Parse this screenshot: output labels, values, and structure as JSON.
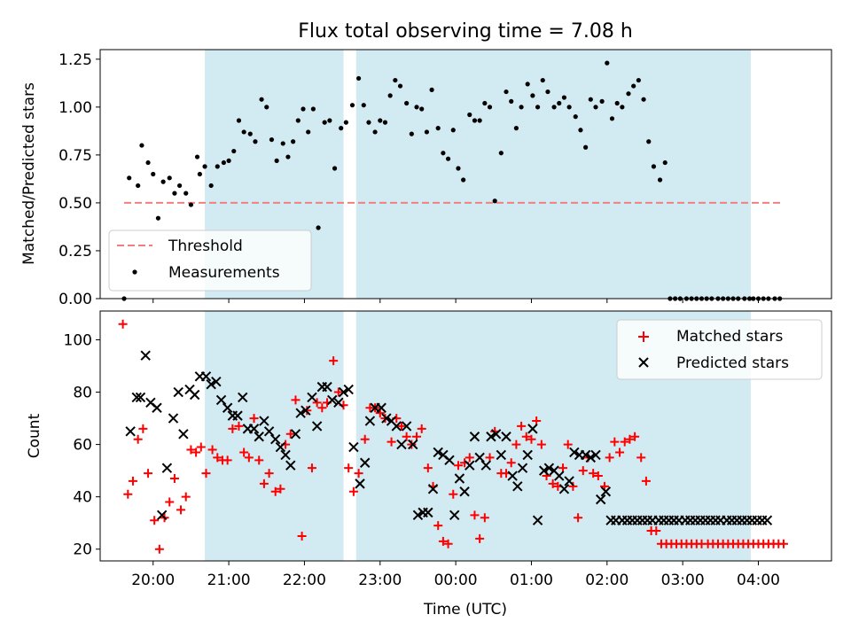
{
  "chart_data": [
    {
      "type": "scatter",
      "title": "Flux total observing time = 7.08 h",
      "xlabel": "",
      "ylabel": "Matched/Predicted stars",
      "xlim": [
        "19:18",
        "04:58"
      ],
      "ylim": [
        0,
        1.3
      ],
      "yticks": [
        0,
        0.25,
        0.5,
        0.75,
        1.0,
        1.25
      ],
      "ytick_labels": [
        "0.00",
        "0.25",
        "0.50",
        "0.75",
        "1.00",
        "1.25"
      ],
      "xticks": [
        "20:00",
        "21:00",
        "22:00",
        "23:00",
        "00:00",
        "01:00",
        "02:00",
        "03:00",
        "04:00"
      ],
      "show_x_tick_labels": false,
      "grid": false,
      "legend": {
        "placement": "lower-left",
        "entries": [
          "Threshold",
          "Measurements"
        ]
      },
      "shaded_intervals": [
        [
          "20:41",
          "22:31"
        ],
        [
          "22:41",
          "03:54"
        ]
      ],
      "shade_color": "#add8e6",
      "threshold": {
        "name": "Threshold",
        "value": 0.5,
        "x_range": [
          "19:37",
          "04:20"
        ],
        "color": "#f08080",
        "style": "dashed"
      },
      "series": [
        {
          "name": "Measurements",
          "color": "#000000",
          "marker": "dot",
          "x": [
            "19:37",
            "19:41",
            "19:48",
            "19:51",
            "19:56",
            "20:00",
            "20:04",
            "20:08",
            "20:13",
            "20:17",
            "20:21",
            "20:26",
            "20:30",
            "20:35",
            "20:37",
            "20:41",
            "20:46",
            "20:51",
            "20:56",
            "21:00",
            "21:04",
            "21:08",
            "21:12",
            "21:17",
            "21:21",
            "21:26",
            "21:30",
            "21:34",
            "21:38",
            "21:43",
            "21:47",
            "21:51",
            "21:55",
            "21:59",
            "22:03",
            "22:07",
            "22:11",
            "22:16",
            "22:20",
            "22:24",
            "22:29",
            "22:33",
            "22:38",
            "22:43",
            "22:47",
            "22:51",
            "22:56",
            "23:00",
            "23:04",
            "23:08",
            "23:12",
            "23:16",
            "23:21",
            "23:25",
            "23:29",
            "23:33",
            "23:37",
            "23:41",
            "23:46",
            "23:50",
            "23:54",
            "23:58",
            "00:02",
            "00:06",
            "00:11",
            "00:15",
            "00:19",
            "00:23",
            "00:27",
            "00:31",
            "00:36",
            "00:40",
            "00:44",
            "00:48",
            "00:52",
            "00:57",
            "01:01",
            "01:05",
            "01:09",
            "01:13",
            "01:18",
            "01:22",
            "01:26",
            "01:30",
            "01:35",
            "01:39",
            "01:43",
            "01:47",
            "01:51",
            "01:56",
            "02:00",
            "02:04",
            "02:08",
            "02:12",
            "02:17",
            "02:21",
            "02:25",
            "02:29",
            "02:33",
            "02:37",
            "02:42",
            "02:46",
            "02:50",
            "02:54",
            "02:58",
            "03:03",
            "03:07",
            "03:11",
            "03:15",
            "03:19",
            "03:23",
            "03:28",
            "03:32",
            "03:36",
            "03:40",
            "03:44",
            "03:49",
            "03:53",
            "03:56",
            "04:00",
            "04:04",
            "04:08",
            "04:13",
            "04:17"
          ],
          "y": [
            0.0,
            0.63,
            0.59,
            0.8,
            0.71,
            0.65,
            0.42,
            0.61,
            0.63,
            0.55,
            0.59,
            0.55,
            0.49,
            0.74,
            0.65,
            0.69,
            0.59,
            0.69,
            0.71,
            0.72,
            0.77,
            0.93,
            0.87,
            0.86,
            0.82,
            1.04,
            1.0,
            0.83,
            0.72,
            0.81,
            0.74,
            0.82,
            0.93,
            0.99,
            0.87,
            0.99,
            0.37,
            0.92,
            0.93,
            0.68,
            0.89,
            0.92,
            1.01,
            1.15,
            1.01,
            0.92,
            0.87,
            0.93,
            0.92,
            1.06,
            1.14,
            1.11,
            1.02,
            0.86,
            1.0,
            0.99,
            0.87,
            1.09,
            0.89,
            0.76,
            0.73,
            0.88,
            0.68,
            0.62,
            0.96,
            0.93,
            0.93,
            1.02,
            1.0,
            0.51,
            0.76,
            1.08,
            1.03,
            0.89,
            1.0,
            1.12,
            1.06,
            1.0,
            1.14,
            1.08,
            1.0,
            1.02,
            1.05,
            1.0,
            0.95,
            0.88,
            0.79,
            1.04,
            1.0,
            1.03,
            1.23,
            0.94,
            1.02,
            1.0,
            1.07,
            1.11,
            1.14,
            1.04,
            0.82,
            0.69,
            0.62,
            0.71,
            0.0,
            0.0,
            0.0,
            0.0,
            0.0,
            0.0,
            0.0,
            0.0,
            0.0,
            0.0,
            0.0,
            0.0,
            0.0,
            0.0,
            0.0,
            0.0,
            0.0,
            0.0,
            0.0,
            0.0,
            0.0,
            0.0
          ]
        }
      ]
    },
    {
      "type": "scatter",
      "title": "",
      "xlabel": "Time (UTC)",
      "ylabel": "Count",
      "xlim": [
        "19:18",
        "04:58"
      ],
      "ylim": [
        15.5,
        111
      ],
      "yticks": [
        20,
        40,
        60,
        80,
        100
      ],
      "ytick_labels": [
        "20",
        "40",
        "60",
        "80",
        "100"
      ],
      "xticks": [
        "20:00",
        "21:00",
        "22:00",
        "23:00",
        "00:00",
        "01:00",
        "02:00",
        "03:00",
        "04:00"
      ],
      "show_x_tick_labels": true,
      "grid": false,
      "legend": {
        "placement": "top-right",
        "entries": [
          "Matched stars",
          "Predicted stars"
        ]
      },
      "shaded_intervals": [
        [
          "20:41",
          "22:31"
        ],
        [
          "22:41",
          "03:54"
        ]
      ],
      "shade_color": "#add8e6",
      "series": [
        {
          "name": "Matched stars",
          "color": "#ff0000",
          "marker": "plus",
          "x": [
            "19:36",
            "19:40",
            "19:44",
            "19:48",
            "19:52",
            "19:56",
            "20:01",
            "20:05",
            "20:09",
            "20:13",
            "20:17",
            "20:22",
            "20:26",
            "20:30",
            "20:34",
            "20:38",
            "20:42",
            "20:47",
            "20:51",
            "20:55",
            "20:59",
            "21:03",
            "21:08",
            "21:12",
            "21:16",
            "21:20",
            "21:24",
            "21:28",
            "21:32",
            "21:37",
            "21:41",
            "21:45",
            "21:49",
            "21:53",
            "21:58",
            "22:02",
            "22:06",
            "22:10",
            "22:14",
            "22:18",
            "22:23",
            "22:27",
            "22:31",
            "22:35",
            "22:39",
            "22:43",
            "22:48",
            "22:52",
            "22:56",
            "23:00",
            "23:04",
            "23:09",
            "23:13",
            "23:17",
            "23:21",
            "23:25",
            "23:29",
            "23:33",
            "23:38",
            "23:42",
            "23:46",
            "23:50",
            "23:54",
            "23:58",
            "00:02",
            "00:07",
            "00:11",
            "00:15",
            "00:19",
            "00:23",
            "00:27",
            "00:31",
            "00:36",
            "00:40",
            "00:44",
            "00:48",
            "00:52",
            "00:56",
            "01:00",
            "01:04",
            "01:08",
            "01:12",
            "01:17",
            "01:21",
            "01:25",
            "01:29",
            "01:33",
            "01:37",
            "01:41",
            "01:45",
            "01:49",
            "01:53",
            "01:58",
            "02:02",
            "02:06",
            "02:10",
            "02:14",
            "02:18",
            "02:22",
            "02:27",
            "02:31",
            "02:35",
            "02:39",
            "02:43",
            "02:47",
            "02:51",
            "02:55",
            "02:59",
            "03:03",
            "03:07",
            "03:11",
            "03:15",
            "03:20",
            "03:24",
            "03:28",
            "03:32",
            "03:36",
            "03:40",
            "03:44",
            "03:48",
            "03:52",
            "03:56",
            "04:00",
            "04:04",
            "04:08",
            "04:12",
            "04:16",
            "04:20"
          ],
          "y": [
            106,
            41,
            46,
            62,
            66,
            49,
            31,
            20,
            32,
            38,
            47,
            35,
            40,
            58,
            57,
            59,
            49,
            58,
            55,
            54,
            54,
            66,
            67,
            57,
            55,
            70,
            54,
            45,
            49,
            42,
            43,
            60,
            64,
            77,
            25,
            73,
            51,
            76,
            74,
            76,
            92,
            80,
            75,
            51,
            42,
            49,
            62,
            74,
            74,
            72,
            70,
            61,
            70,
            67,
            63,
            60,
            63,
            66,
            51,
            44,
            29,
            23,
            22,
            41,
            52,
            53,
            55,
            33,
            24,
            32,
            55,
            65,
            49,
            49,
            53,
            60,
            67,
            63,
            62,
            69,
            60,
            48,
            45,
            44,
            51,
            60,
            44,
            32,
            50,
            55,
            49,
            48,
            44,
            55,
            61,
            57,
            61,
            62,
            63,
            55,
            46,
            27,
            27,
            22,
            22,
            22,
            22,
            22,
            22,
            22,
            22,
            22,
            22,
            22,
            22,
            22,
            22,
            22,
            22,
            22,
            22,
            22,
            22,
            22,
            22,
            22,
            22,
            22
          ]
        },
        {
          "name": "Predicted stars",
          "color": "#000000",
          "marker": "x",
          "x": [
            "19:42",
            "19:47",
            "19:50",
            "19:54",
            "19:58",
            "20:03",
            "20:07",
            "20:11",
            "20:16",
            "20:20",
            "20:24",
            "20:29",
            "20:33",
            "20:37",
            "20:42",
            "20:46",
            "20:50",
            "20:54",
            "20:59",
            "21:03",
            "21:07",
            "21:11",
            "21:15",
            "21:20",
            "21:24",
            "21:28",
            "21:32",
            "21:37",
            "21:41",
            "21:45",
            "21:49",
            "21:53",
            "21:57",
            "22:01",
            "22:06",
            "22:10",
            "22:14",
            "22:18",
            "22:22",
            "22:27",
            "22:31",
            "22:35",
            "22:39",
            "22:44",
            "22:48",
            "22:52",
            "22:56",
            "23:01",
            "23:05",
            "23:09",
            "23:13",
            "23:17",
            "23:21",
            "23:26",
            "23:30",
            "23:34",
            "23:38",
            "23:42",
            "23:46",
            "23:50",
            "23:55",
            "23:59",
            "00:03",
            "00:07",
            "00:11",
            "00:15",
            "00:19",
            "00:24",
            "00:28",
            "00:32",
            "00:36",
            "00:40",
            "00:45",
            "00:49",
            "00:53",
            "00:57",
            "01:01",
            "01:05",
            "01:10",
            "01:14",
            "01:18",
            "01:22",
            "01:26",
            "01:30",
            "01:34",
            "01:38",
            "01:43",
            "01:47",
            "01:51",
            "01:55",
            "01:59",
            "02:03",
            "02:07",
            "02:12",
            "02:16",
            "02:20",
            "02:24",
            "02:28",
            "02:32",
            "02:36",
            "02:41",
            "02:45",
            "02:49",
            "02:53",
            "02:57",
            "03:02",
            "03:06",
            "03:10",
            "03:14",
            "03:18",
            "03:22",
            "03:26",
            "03:30",
            "03:35",
            "03:39",
            "03:43",
            "03:47",
            "03:51",
            "03:55",
            "03:59",
            "04:03",
            "04:07"
          ],
          "y": [
            65,
            78,
            78,
            94,
            76,
            74,
            33,
            51,
            70,
            80,
            64,
            81,
            79,
            86,
            86,
            83,
            84,
            77,
            74,
            71,
            71,
            78,
            66,
            66,
            63,
            69,
            65,
            62,
            59,
            56,
            52,
            64,
            72,
            73,
            78,
            67,
            82,
            82,
            77,
            76,
            80,
            81,
            59,
            45,
            53,
            69,
            74,
            74,
            70,
            69,
            67,
            60,
            67,
            60,
            33,
            34,
            34,
            43,
            57,
            56,
            54,
            33,
            47,
            42,
            52,
            63,
            55,
            52,
            63,
            64,
            56,
            63,
            48,
            44,
            51,
            56,
            66,
            31,
            50,
            51,
            50,
            48,
            43,
            46,
            57,
            56,
            56,
            55,
            56,
            39,
            42,
            31,
            31,
            31,
            31,
            31,
            31,
            31,
            31,
            31,
            31,
            31,
            31,
            31,
            31,
            31,
            31,
            31,
            31,
            31,
            31,
            31,
            31,
            31,
            31,
            31,
            31,
            31,
            31,
            31,
            31,
            31
          ]
        }
      ]
    }
  ]
}
